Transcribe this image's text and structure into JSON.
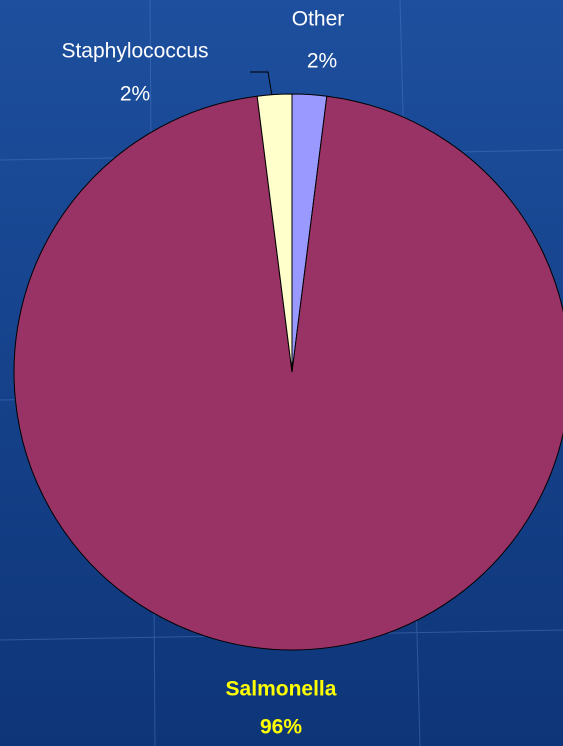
{
  "chart_data": {
    "type": "pie",
    "categories": [
      "Other",
      "Salmonella",
      "Staphylococcus"
    ],
    "values": [
      2,
      96,
      2
    ],
    "value_labels": [
      "2%",
      "96%",
      "2%"
    ],
    "colors": [
      "#9999ff",
      "#993366",
      "#ffffcc"
    ]
  }
}
